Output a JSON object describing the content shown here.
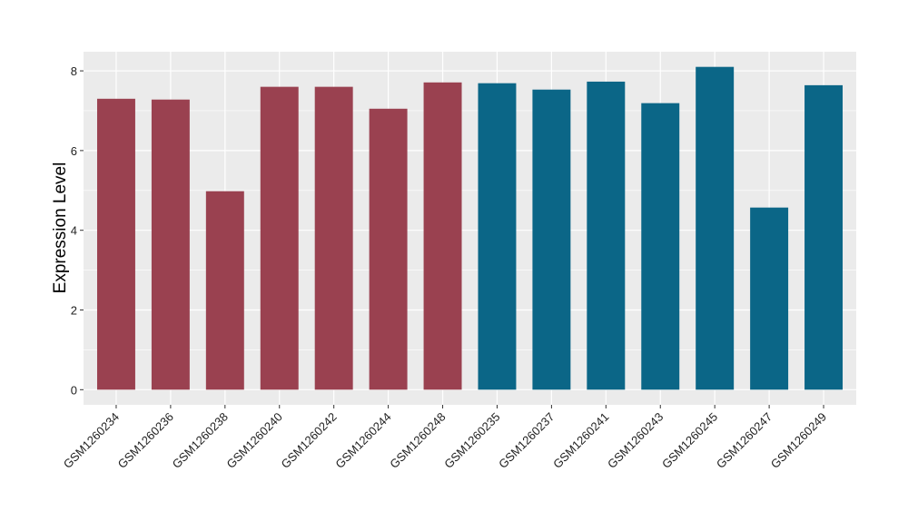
{
  "chart_data": {
    "type": "bar",
    "title": "",
    "xlabel": "",
    "ylabel": "Expression Level",
    "ylim": [
      -0.38,
      8.48
    ],
    "yticks": [
      0,
      2,
      4,
      6,
      8
    ],
    "grid": true,
    "categories": [
      "GSM1260234",
      "GSM1260236",
      "GSM1260238",
      "GSM1260240",
      "GSM1260242",
      "GSM1260244",
      "GSM1260248",
      "GSM1260235",
      "GSM1260237",
      "GSM1260241",
      "GSM1260243",
      "GSM1260245",
      "GSM1260247",
      "GSM1260249"
    ],
    "values": [
      7.3,
      7.28,
      4.98,
      7.6,
      7.6,
      7.05,
      7.71,
      7.69,
      7.53,
      7.73,
      7.19,
      8.1,
      4.57,
      7.64
    ],
    "groups": [
      0,
      0,
      0,
      0,
      0,
      0,
      0,
      1,
      1,
      1,
      1,
      1,
      1,
      1
    ],
    "colors": [
      "#9a4150",
      "#0b6687"
    ],
    "panel_bg": "#ebebeb"
  }
}
